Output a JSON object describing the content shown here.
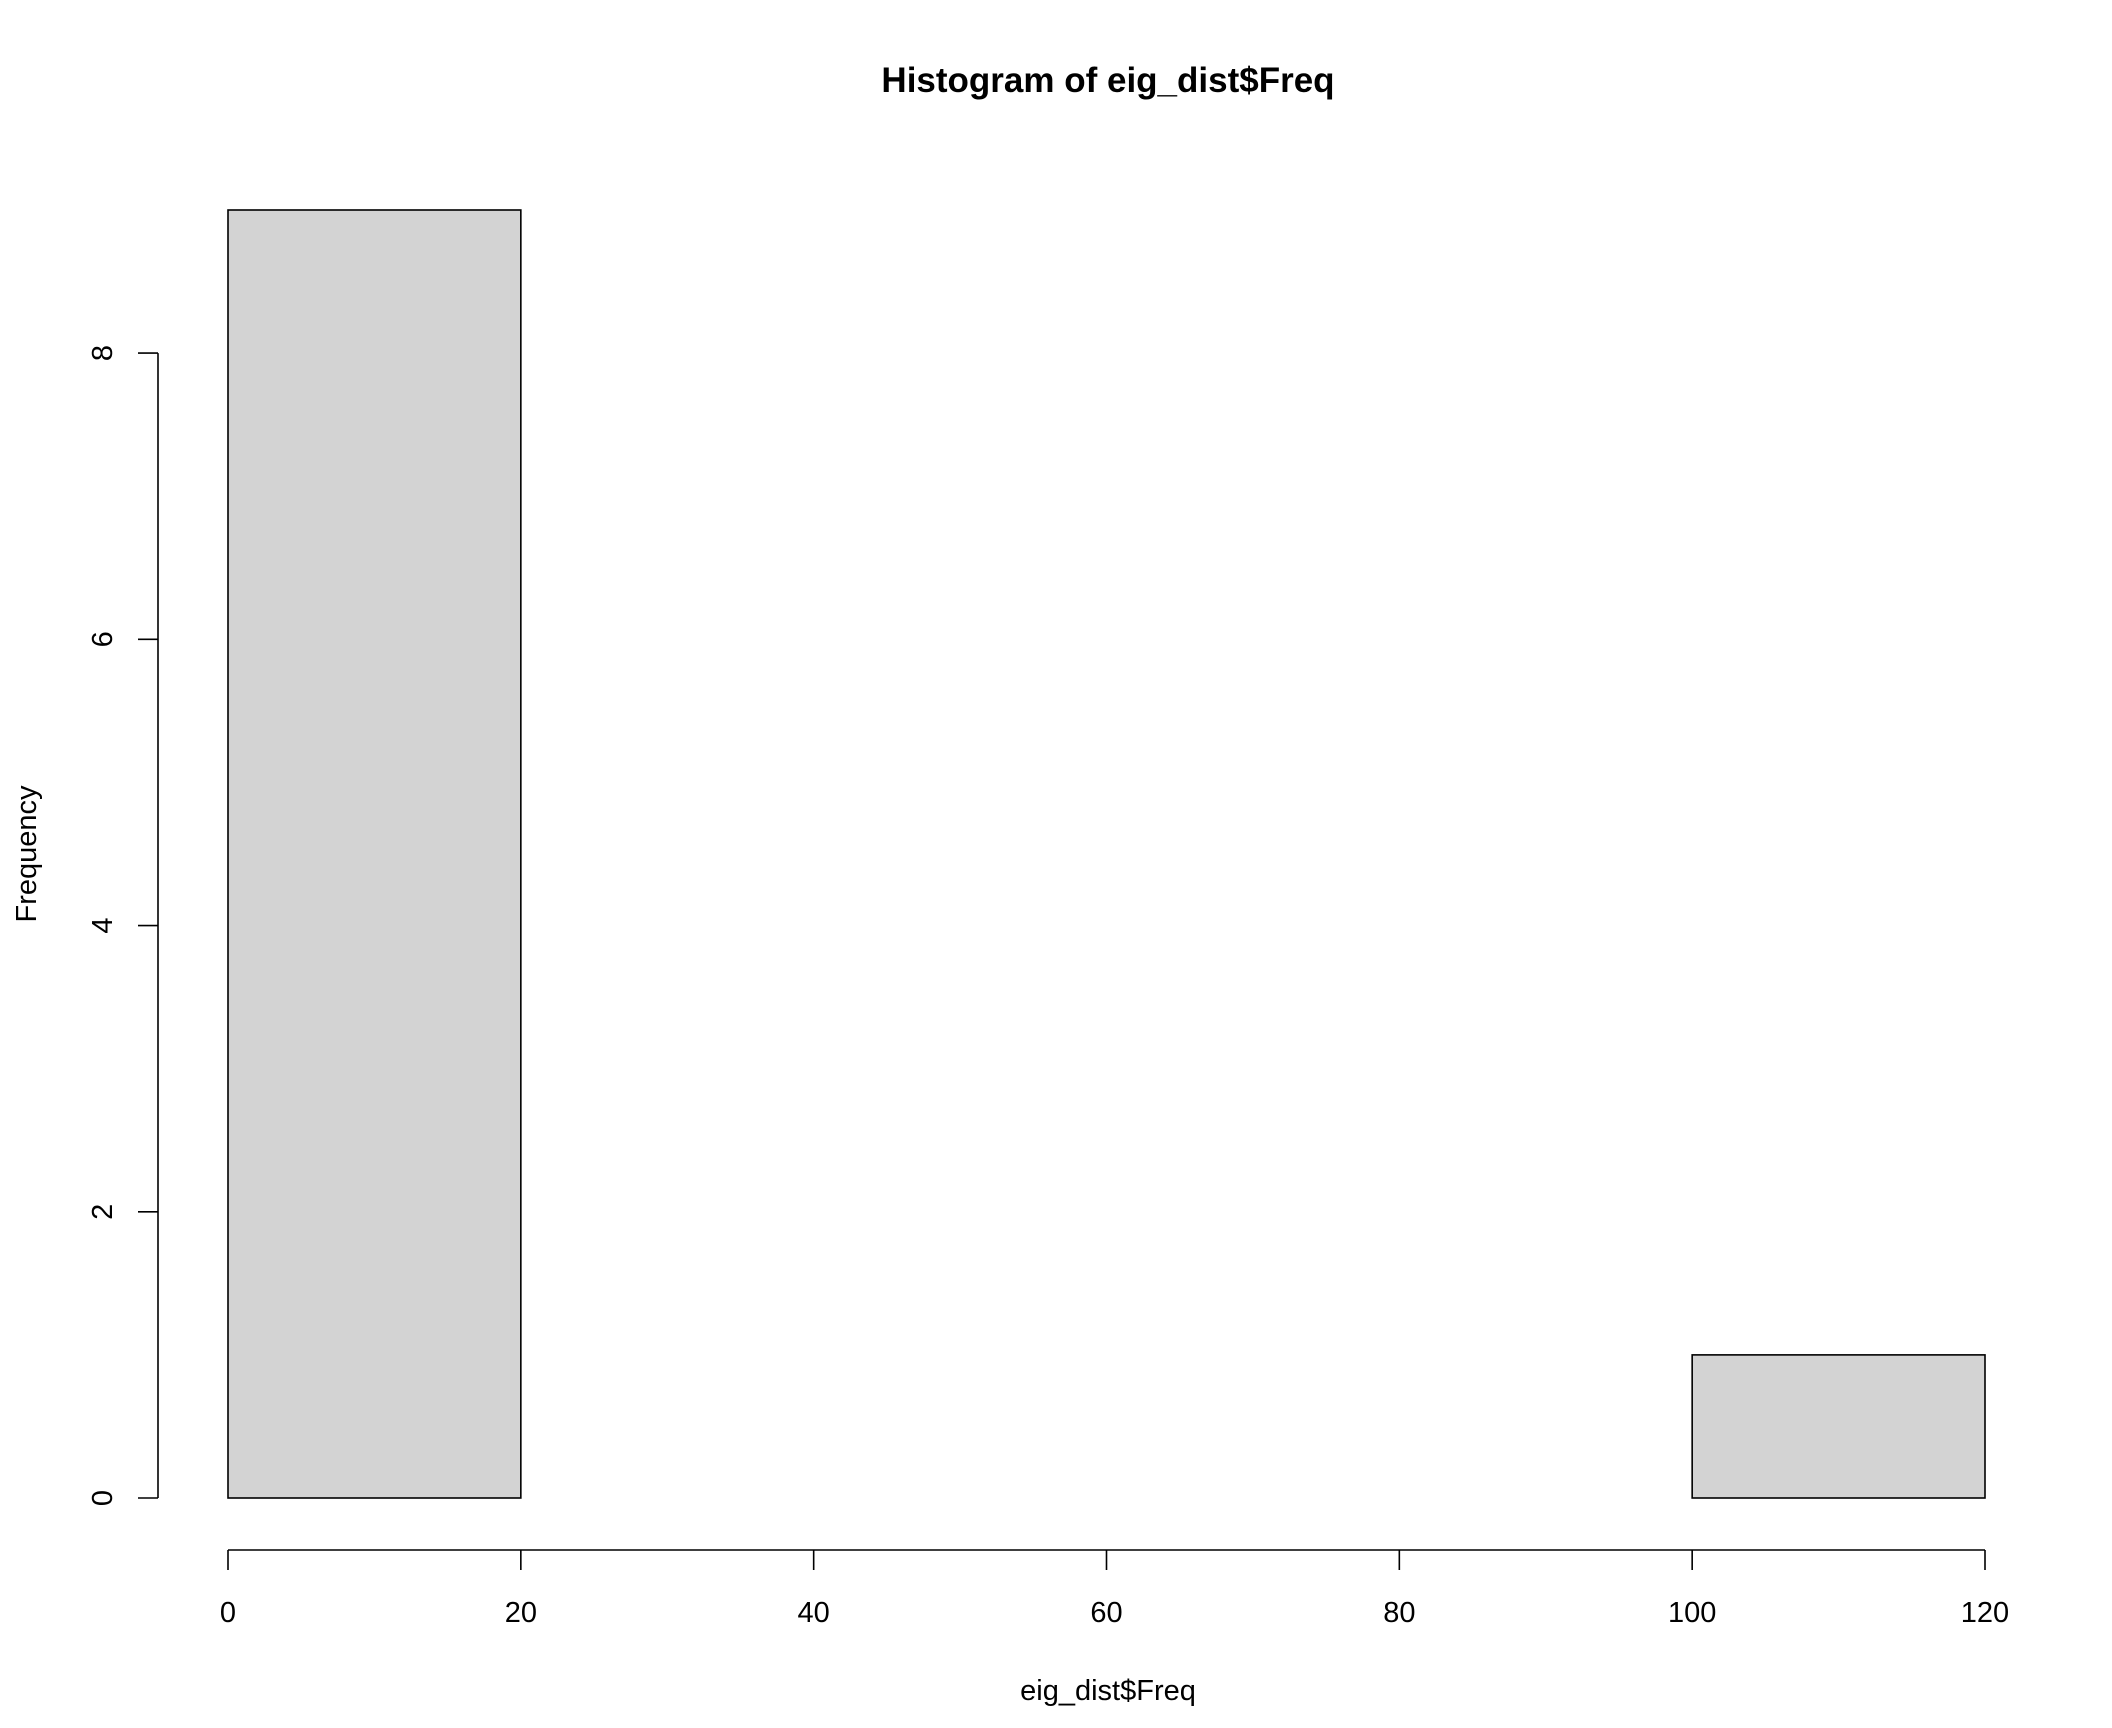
{
  "chart_data": {
    "type": "bar",
    "title": "Histogram of eig_dist$Freq",
    "xlabel": "eig_dist$Freq",
    "ylabel": "Frequency",
    "bins": [
      {
        "x0": 0,
        "x1": 20,
        "count": 9
      },
      {
        "x0": 20,
        "x1": 40,
        "count": 0
      },
      {
        "x0": 40,
        "x1": 60,
        "count": 0
      },
      {
        "x0": 60,
        "x1": 80,
        "count": 0
      },
      {
        "x0": 80,
        "x1": 100,
        "count": 0
      },
      {
        "x0": 100,
        "x1": 120,
        "count": 1
      }
    ],
    "xlim": [
      0,
      120
    ],
    "ylim": [
      0,
      9
    ],
    "x_ticks": [
      0,
      20,
      40,
      60,
      80,
      100,
      120
    ],
    "x_tick_labels": [
      "0",
      "20",
      "40",
      "60",
      "80",
      "100",
      "120"
    ],
    "y_ticks": [
      0,
      2,
      4,
      6,
      8
    ],
    "y_tick_labels": [
      "0",
      "2",
      "4",
      "6",
      "8"
    ],
    "colors": {
      "bar_fill": "#d3d3d3",
      "bar_stroke": "#000000"
    },
    "grid": false,
    "legend": "none"
  }
}
